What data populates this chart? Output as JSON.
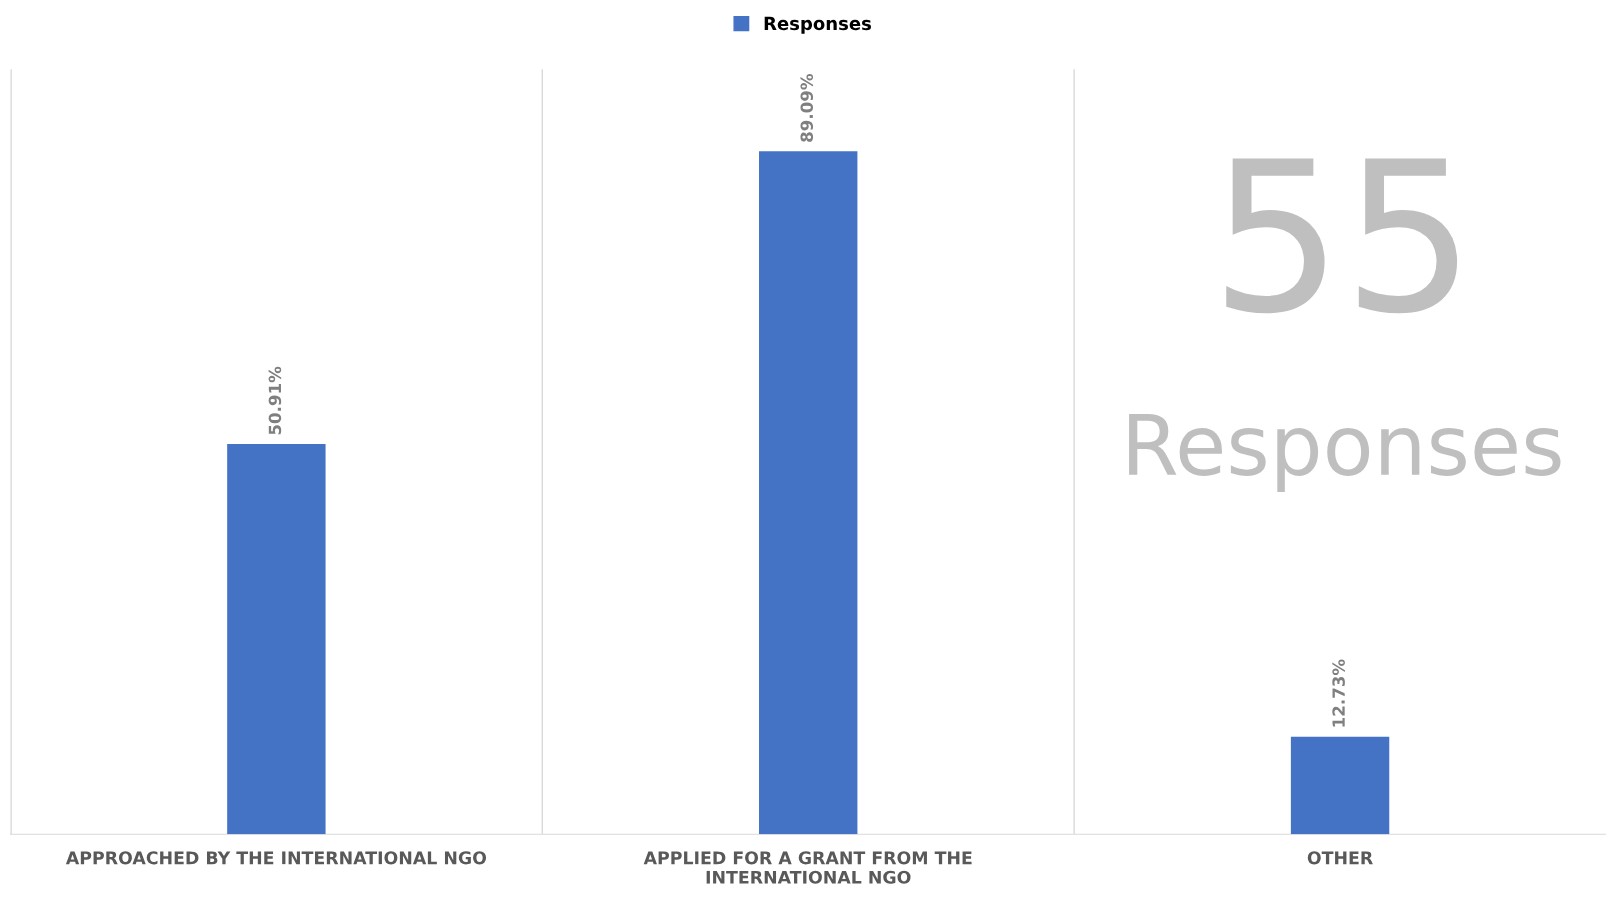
{
  "chart_data": {
    "type": "bar",
    "categories": [
      "APPROACHED BY THE INTERNATIONAL NGO",
      "APPLIED FOR A GRANT FROM THE\nINTERNATIONAL NGO",
      "OTHER"
    ],
    "series": [
      {
        "name": "Responses",
        "color": "#4472c4",
        "values": [
          50.91,
          89.09,
          12.73
        ],
        "value_labels": [
          "50.91%",
          "89.09%",
          "12.73%"
        ]
      }
    ],
    "tick_labels": "x",
    "grid": "x",
    "legend": "top",
    "annotations": [
      "55",
      "Responses"
    ]
  }
}
